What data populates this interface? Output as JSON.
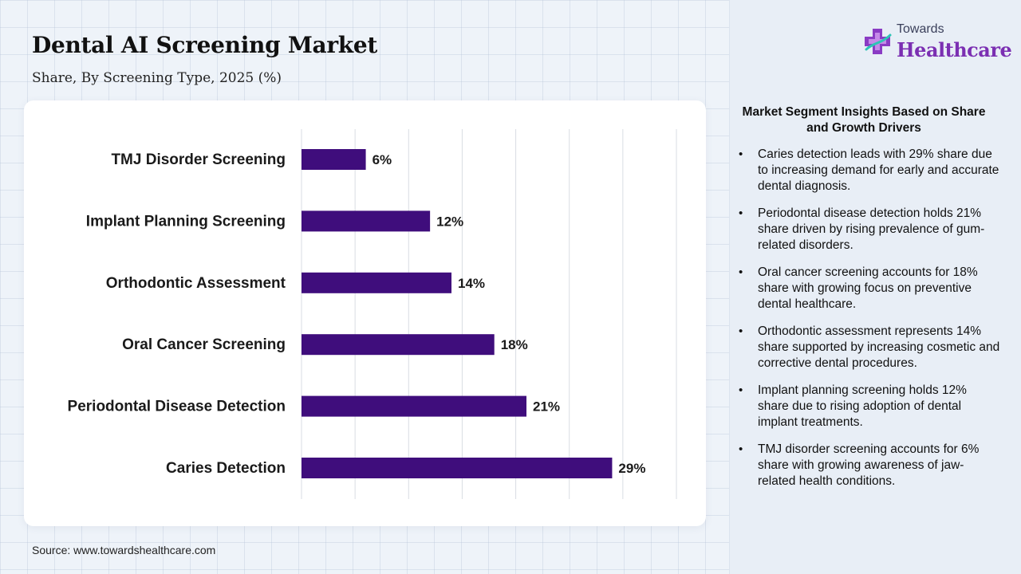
{
  "header": {
    "title": "Dental AI Screening Market",
    "subtitle": "Share, By Screening Type, 2025 (%)"
  },
  "brand": {
    "top": "Towards",
    "main": "Healthcare",
    "logo_icon": "medical-cross-icon"
  },
  "source": "Source: www.towardshealthcare.com",
  "colors": {
    "bar": "#3f0d7c",
    "gridline": "#d9dde3",
    "panel_bg": "#e8eef6",
    "brand_purple": "#7b2fb2"
  },
  "chart_data": {
    "type": "bar",
    "orientation": "horizontal",
    "categories": [
      "TMJ Disorder Screening",
      "Implant Planning Screening",
      "Orthodontic Assessment",
      "Oral Cancer Screening",
      "Periodontal Disease Detection",
      "Caries Detection"
    ],
    "values": [
      6,
      12,
      14,
      18,
      21,
      29
    ],
    "data_labels": [
      "6%",
      "12%",
      "14%",
      "18%",
      "21%",
      "29%"
    ],
    "xlim": [
      0,
      35
    ],
    "grid": true,
    "legend": "none"
  },
  "insights": {
    "heading": "Market Segment Insights Based on Share and Growth Drivers",
    "items": [
      "Caries detection leads with 29% share due to increasing demand for early and accurate dental diagnosis.",
      "Periodontal disease detection holds 21% share driven by rising prevalence of gum-related disorders.",
      "Oral cancer screening accounts for 18% share with growing focus on preventive dental healthcare.",
      "Orthodontic assessment represents 14% share supported by increasing cosmetic and corrective dental procedures.",
      "Implant planning screening holds 12% share due to rising adoption of dental implant treatments.",
      "TMJ disorder screening accounts for 6% share with growing awareness of jaw-related health conditions."
    ]
  }
}
